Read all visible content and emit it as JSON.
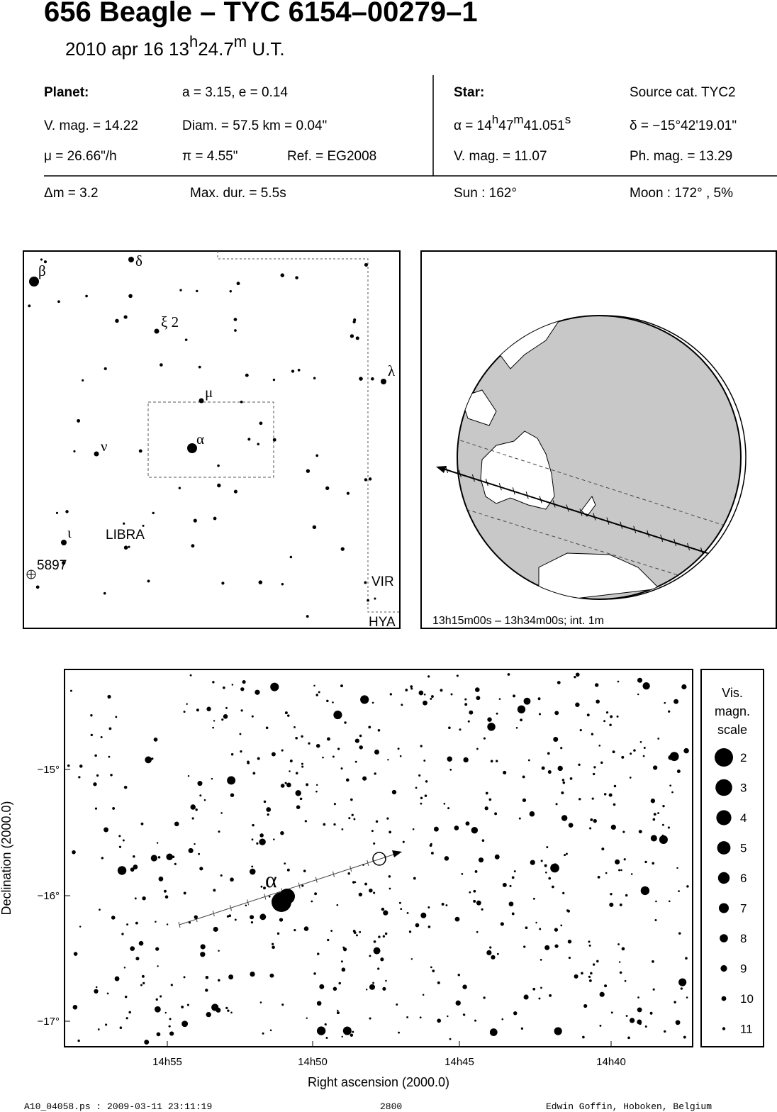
{
  "header": {
    "title": "656 Beagle  –  TYC 6154–00279–1",
    "date": [
      "2010 apr 16  13",
      "h",
      "24.7",
      "m",
      " U.T."
    ]
  },
  "info": {
    "planet_label": "Planet:",
    "orbit": "a = 3.15, e = 0.14",
    "vmag": "V. mag. = 14.22",
    "diam": "Diam. = 57.5 km = 0.04\"",
    "mu": "μ =  26.66\"/h",
    "parallax": "π =  4.55\"",
    "ref": "Ref. = EG2008",
    "star_label": "Star:",
    "source": "Source cat.  TYC2",
    "alpha": [
      "α = 14",
      "h",
      "47",
      "m",
      "41.051",
      "s"
    ],
    "delta": "δ = −15°42'19.01\"",
    "star_vmag": "V. mag. = 11.07",
    "phmag": "Ph. mag. = 13.29",
    "dm": "Δm = 3.2",
    "maxdur": "Max. dur. = 5.5s",
    "sun": "Sun : 162°",
    "moon": "Moon : 172° ,  5%"
  },
  "finder": {
    "beta": "β",
    "delta": "δ",
    "xi": "ξ 2",
    "lambda": "λ",
    "mu": "μ",
    "alpha": "α",
    "nu": "ν",
    "iota": "ι",
    "constellation": "LIBRA",
    "nebula": "5897",
    "vir": "VIR",
    "hya": "HYA"
  },
  "globe": {
    "caption": "13h15m00s – 13h34m00s; int.  1m"
  },
  "detail": {
    "xticks": [
      "14h55",
      "14h50",
      "14h45",
      "14h40"
    ],
    "yticks": [
      "−15°",
      "−16°",
      "−17°"
    ],
    "xlabel": "Right ascension (2000.0)",
    "ylabel": "Declination (2000.0)",
    "alpha": "α",
    "legend_title": [
      "Vis.",
      "magn.",
      "scale"
    ],
    "legend_values": [
      2,
      3,
      4,
      5,
      6,
      7,
      8,
      9,
      10,
      11
    ]
  },
  "footer": {
    "file": "A10_04058.ps : 2009-03-11 23:11:19",
    "number": "2800",
    "author": "Edwin Goffin, Hoboken, Belgium"
  }
}
